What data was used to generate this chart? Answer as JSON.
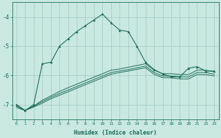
{
  "xlabel": "Humidex (Indice chaleur)",
  "background_color": "#c8e8e0",
  "grid_color": "#a0c8c0",
  "line_color": "#1a6b5a",
  "xlim": [
    -0.5,
    23.5
  ],
  "ylim": [
    -7.5,
    -3.5
  ],
  "yticks": [
    -7,
    -6,
    -5,
    -4
  ],
  "xticks": [
    0,
    1,
    2,
    3,
    4,
    5,
    6,
    7,
    8,
    9,
    10,
    11,
    12,
    13,
    14,
    15,
    16,
    17,
    18,
    19,
    20,
    21,
    22,
    23
  ],
  "series1_x": [
    0,
    1,
    2,
    3,
    4,
    5,
    6,
    7,
    8,
    9,
    10,
    11,
    12,
    13,
    14,
    15,
    16,
    17,
    18,
    19,
    20,
    21,
    22,
    23
  ],
  "series1_y": [
    -7.0,
    -7.2,
    -7.0,
    -5.6,
    -5.55,
    -5.0,
    -4.75,
    -4.5,
    -4.3,
    -4.1,
    -3.9,
    -4.2,
    -4.45,
    -4.5,
    -5.0,
    -5.55,
    -5.8,
    -5.95,
    -6.05,
    -6.05,
    -5.75,
    -5.7,
    -5.85,
    -5.85
  ],
  "series2_x": [
    0,
    1,
    2,
    3,
    4,
    5,
    6,
    7,
    8,
    9,
    10,
    11,
    12,
    13,
    14,
    15,
    16,
    17,
    18,
    19,
    20,
    21,
    22,
    23
  ],
  "series2_y": [
    -7.0,
    -7.2,
    -7.05,
    -6.85,
    -6.7,
    -6.55,
    -6.42,
    -6.3,
    -6.18,
    -6.06,
    -5.94,
    -5.82,
    -5.78,
    -5.72,
    -5.66,
    -5.6,
    -5.82,
    -5.94,
    -5.94,
    -5.97,
    -5.97,
    -5.82,
    -5.82,
    -5.88
  ],
  "series3_x": [
    0,
    1,
    2,
    3,
    4,
    5,
    6,
    7,
    8,
    9,
    10,
    11,
    12,
    13,
    14,
    15,
    16,
    17,
    18,
    19,
    20,
    21,
    22,
    23
  ],
  "series3_y": [
    -7.05,
    -7.2,
    -7.05,
    -6.9,
    -6.75,
    -6.62,
    -6.5,
    -6.38,
    -6.26,
    -6.14,
    -6.02,
    -5.9,
    -5.85,
    -5.8,
    -5.74,
    -5.68,
    -5.9,
    -6.02,
    -6.02,
    -6.05,
    -6.05,
    -5.9,
    -5.9,
    -5.96
  ],
  "series4_x": [
    0,
    1,
    2,
    3,
    4,
    5,
    6,
    7,
    8,
    9,
    10,
    11,
    12,
    13,
    14,
    15,
    16,
    17,
    18,
    19,
    20,
    21,
    22,
    23
  ],
  "series4_y": [
    -7.1,
    -7.2,
    -7.08,
    -6.95,
    -6.8,
    -6.68,
    -6.56,
    -6.44,
    -6.32,
    -6.2,
    -6.08,
    -5.96,
    -5.9,
    -5.85,
    -5.79,
    -5.74,
    -5.96,
    -6.08,
    -6.08,
    -6.12,
    -6.12,
    -5.97,
    -5.97,
    -6.02
  ]
}
